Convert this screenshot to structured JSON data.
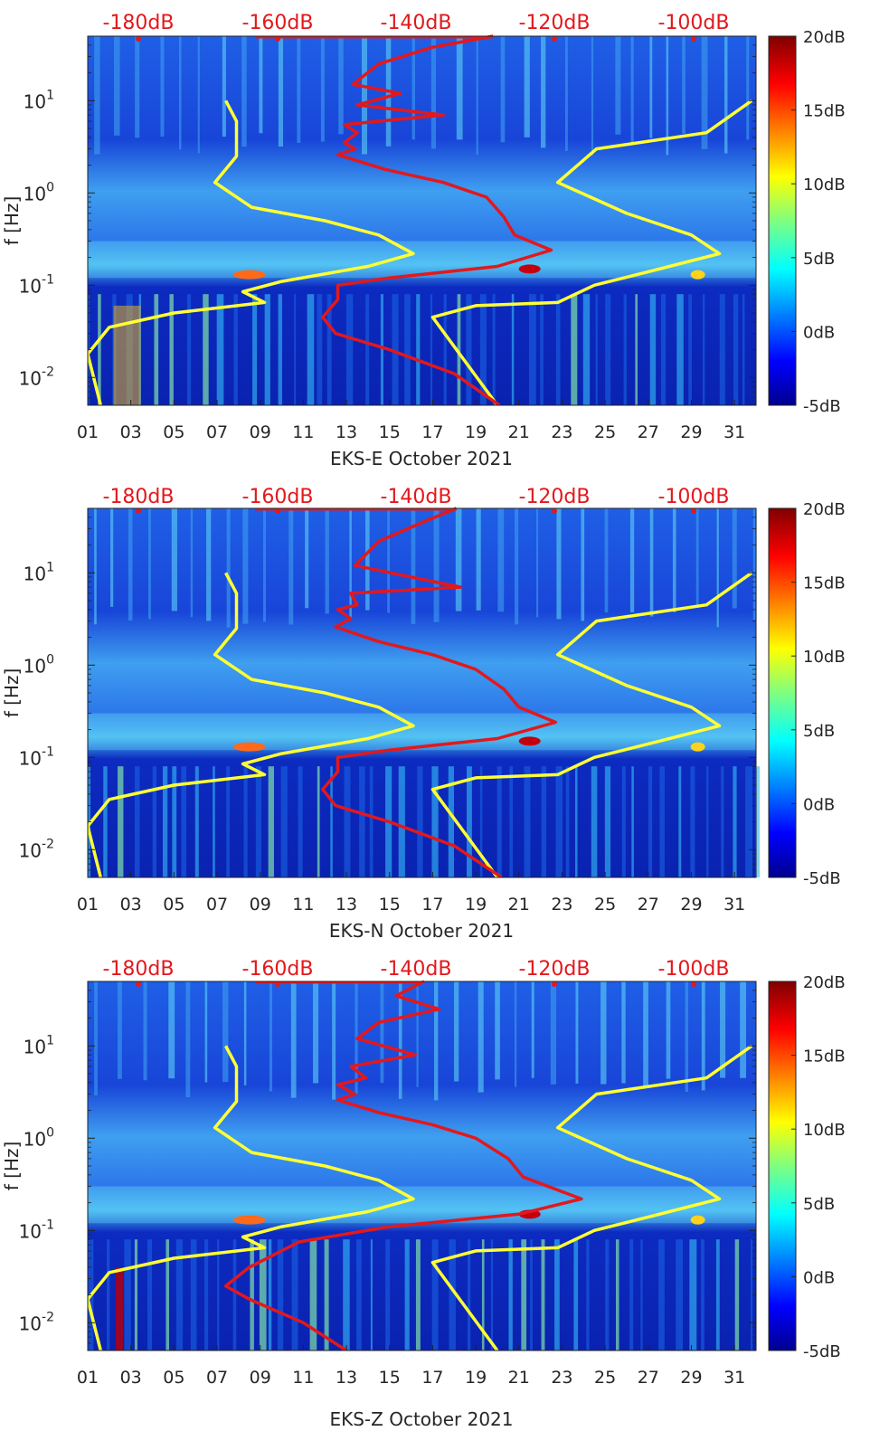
{
  "chart_data": [
    {
      "type": "heatmap",
      "xlabel": "EKS-E October 2021",
      "ylabel": "f [Hz]",
      "x_ticks": [
        "01",
        "03",
        "05",
        "07",
        "09",
        "11",
        "13",
        "15",
        "17",
        "19",
        "21",
        "23",
        "25",
        "27",
        "29",
        "31"
      ],
      "y_ticks": [
        "10^-2",
        "10^-1",
        "10^0",
        "10^1"
      ],
      "xlim_days": [
        1,
        32
      ],
      "ylim_hz": [
        0.005,
        50
      ],
      "top_ticks": [
        "-180dB",
        "-160dB",
        "-140dB",
        "-120dB",
        "-100dB"
      ],
      "colorbar_ticks": [
        "20dB",
        "15dB",
        "10dB",
        "5dB",
        "0dB",
        "-5dB"
      ],
      "colorbar_range_db": [
        -5,
        20
      ],
      "series": [
        {
          "name": "left-model-curve",
          "color": "#ffff33",
          "points": [
            [
              7.4,
              10
            ],
            [
              7.9,
              6
            ],
            [
              7.9,
              2.5
            ],
            [
              6.9,
              1.3
            ],
            [
              8.6,
              0.7
            ],
            [
              12,
              0.5
            ],
            [
              14.5,
              0.35
            ],
            [
              16.1,
              0.22
            ],
            [
              14,
              0.16
            ],
            [
              10,
              0.11
            ],
            [
              8.2,
              0.085
            ],
            [
              9.2,
              0.065
            ],
            [
              5,
              0.05
            ],
            [
              2,
              0.035
            ],
            [
              1,
              0.018
            ],
            [
              1.6,
              0.005
            ]
          ]
        },
        {
          "name": "right-model-curve",
          "color": "#ffff33",
          "points": [
            [
              31.8,
              10
            ],
            [
              29.7,
              4.5
            ],
            [
              24.6,
              3
            ],
            [
              22.8,
              1.3
            ],
            [
              26,
              0.6
            ],
            [
              29,
              0.35
            ],
            [
              30.3,
              0.22
            ],
            [
              27,
              0.14
            ],
            [
              24.5,
              0.1
            ],
            [
              22.8,
              0.065
            ],
            [
              19,
              0.06
            ],
            [
              17,
              0.045
            ],
            [
              20,
              0.005
            ]
          ]
        },
        {
          "name": "spectrum-curve",
          "color": "#e3181c",
          "points": [
            [
              19.8,
              50
            ],
            [
              17,
              38
            ],
            [
              14.5,
              25
            ],
            [
              13.3,
              15
            ],
            [
              15.5,
              12
            ],
            [
              13.5,
              9
            ],
            [
              17.5,
              7
            ],
            [
              12.9,
              5.5
            ],
            [
              13.5,
              4.5
            ],
            [
              12.9,
              3.5
            ],
            [
              13.4,
              3
            ],
            [
              12.6,
              2.6
            ],
            [
              14.8,
              1.8
            ],
            [
              17.5,
              1.3
            ],
            [
              19.5,
              0.9
            ],
            [
              20.3,
              0.55
            ],
            [
              20.8,
              0.35
            ],
            [
              22.5,
              0.24
            ],
            [
              20,
              0.16
            ],
            [
              15,
              0.12
            ],
            [
              12.6,
              0.1
            ],
            [
              12.6,
              0.07
            ],
            [
              11.9,
              0.045
            ],
            [
              12.5,
              0.03
            ],
            [
              15,
              0.02
            ],
            [
              18,
              0.011
            ],
            [
              20.1,
              0.005
            ]
          ]
        }
      ]
    },
    {
      "type": "heatmap",
      "xlabel": "EKS-N October 2021",
      "ylabel": "f [Hz]",
      "x_ticks": [
        "01",
        "03",
        "05",
        "07",
        "09",
        "11",
        "13",
        "15",
        "17",
        "19",
        "21",
        "23",
        "25",
        "27",
        "29",
        "31"
      ],
      "y_ticks": [
        "10^-2",
        "10^-1",
        "10^0",
        "10^1"
      ],
      "xlim_days": [
        1,
        32
      ],
      "ylim_hz": [
        0.005,
        50
      ],
      "top_ticks": [
        "-180dB",
        "-160dB",
        "-140dB",
        "-120dB",
        "-100dB"
      ],
      "colorbar_ticks": [
        "20dB",
        "15dB",
        "10dB",
        "5dB",
        "0dB",
        "-5dB"
      ],
      "colorbar_range_db": [
        -5,
        20
      ],
      "series": [
        {
          "name": "left-model-curve",
          "color": "#ffff33",
          "points": [
            [
              7.4,
              10
            ],
            [
              7.9,
              6
            ],
            [
              7.9,
              2.5
            ],
            [
              6.9,
              1.3
            ],
            [
              8.6,
              0.7
            ],
            [
              12,
              0.5
            ],
            [
              14.5,
              0.35
            ],
            [
              16.1,
              0.22
            ],
            [
              14,
              0.16
            ],
            [
              10,
              0.11
            ],
            [
              8.2,
              0.085
            ],
            [
              9.2,
              0.065
            ],
            [
              5,
              0.05
            ],
            [
              2,
              0.035
            ],
            [
              1,
              0.018
            ],
            [
              1.6,
              0.005
            ]
          ]
        },
        {
          "name": "right-model-curve",
          "color": "#ffff33",
          "points": [
            [
              31.8,
              10
            ],
            [
              29.7,
              4.5
            ],
            [
              24.6,
              3
            ],
            [
              22.8,
              1.3
            ],
            [
              26,
              0.6
            ],
            [
              29,
              0.35
            ],
            [
              30.3,
              0.22
            ],
            [
              27,
              0.14
            ],
            [
              24.5,
              0.1
            ],
            [
              22.8,
              0.065
            ],
            [
              19,
              0.06
            ],
            [
              17,
              0.045
            ],
            [
              20,
              0.005
            ]
          ]
        },
        {
          "name": "spectrum-curve",
          "color": "#e3181c",
          "points": [
            [
              18.1,
              50
            ],
            [
              16.5,
              35
            ],
            [
              14.5,
              22
            ],
            [
              13.4,
              12
            ],
            [
              18.3,
              7
            ],
            [
              13.2,
              6
            ],
            [
              13.5,
              4.5
            ],
            [
              12.6,
              4
            ],
            [
              13.2,
              3.2
            ],
            [
              12.5,
              2.6
            ],
            [
              14.5,
              1.8
            ],
            [
              17,
              1.3
            ],
            [
              19,
              0.9
            ],
            [
              20.3,
              0.55
            ],
            [
              21,
              0.35
            ],
            [
              22.7,
              0.24
            ],
            [
              20,
              0.16
            ],
            [
              15,
              0.12
            ],
            [
              12.6,
              0.1
            ],
            [
              12.6,
              0.07
            ],
            [
              11.9,
              0.045
            ],
            [
              12.5,
              0.03
            ],
            [
              15,
              0.02
            ],
            [
              18,
              0.011
            ],
            [
              20.2,
              0.005
            ]
          ]
        }
      ]
    },
    {
      "type": "heatmap",
      "xlabel": "EKS-Z October 2021",
      "ylabel": "f [Hz]",
      "x_ticks": [
        "01",
        "03",
        "05",
        "07",
        "09",
        "11",
        "13",
        "15",
        "17",
        "19",
        "21",
        "23",
        "25",
        "27",
        "29",
        "31"
      ],
      "y_ticks": [
        "10^-2",
        "10^-1",
        "10^0",
        "10^1"
      ],
      "xlim_days": [
        1,
        32
      ],
      "ylim_hz": [
        0.005,
        50
      ],
      "top_ticks": [
        "-180dB",
        "-160dB",
        "-140dB",
        "-120dB",
        "-100dB"
      ],
      "colorbar_ticks": [
        "20dB",
        "15dB",
        "10dB",
        "5dB",
        "0dB",
        "-5dB"
      ],
      "colorbar_range_db": [
        -5,
        20
      ],
      "series": [
        {
          "name": "left-model-curve",
          "color": "#ffff33",
          "points": [
            [
              7.4,
              10
            ],
            [
              7.9,
              6
            ],
            [
              7.9,
              2.5
            ],
            [
              6.9,
              1.3
            ],
            [
              8.6,
              0.7
            ],
            [
              12,
              0.5
            ],
            [
              14.5,
              0.35
            ],
            [
              16.1,
              0.22
            ],
            [
              14,
              0.16
            ],
            [
              10,
              0.11
            ],
            [
              8.2,
              0.085
            ],
            [
              9.2,
              0.065
            ],
            [
              5,
              0.05
            ],
            [
              2,
              0.035
            ],
            [
              1,
              0.018
            ],
            [
              1.6,
              0.005
            ]
          ]
        },
        {
          "name": "right-model-curve",
          "color": "#ffff33",
          "points": [
            [
              31.8,
              10
            ],
            [
              29.7,
              4.5
            ],
            [
              24.6,
              3
            ],
            [
              22.8,
              1.3
            ],
            [
              26,
              0.6
            ],
            [
              29,
              0.35
            ],
            [
              30.3,
              0.22
            ],
            [
              27,
              0.14
            ],
            [
              24.5,
              0.1
            ],
            [
              22.8,
              0.065
            ],
            [
              19,
              0.06
            ],
            [
              17,
              0.045
            ],
            [
              20,
              0.005
            ]
          ]
        },
        {
          "name": "spectrum-curve",
          "color": "#e3181c",
          "points": [
            [
              16.6,
              50
            ],
            [
              15.3,
              35
            ],
            [
              17.3,
              25
            ],
            [
              14.5,
              18
            ],
            [
              13.5,
              12
            ],
            [
              16.2,
              8
            ],
            [
              13.2,
              6
            ],
            [
              13.9,
              4.5
            ],
            [
              12.6,
              3.8
            ],
            [
              13.4,
              3
            ],
            [
              12.6,
              2.6
            ],
            [
              14.5,
              1.9
            ],
            [
              17,
              1.4
            ],
            [
              19,
              1
            ],
            [
              20.5,
              0.6
            ],
            [
              21.2,
              0.38
            ],
            [
              23.9,
              0.22
            ],
            [
              21,
              0.15
            ],
            [
              15,
              0.11
            ],
            [
              10.8,
              0.075
            ],
            [
              8.5,
              0.04
            ],
            [
              7.4,
              0.025
            ],
            [
              8.5,
              0.018
            ],
            [
              11,
              0.01
            ],
            [
              13,
              0.005
            ]
          ]
        }
      ]
    }
  ]
}
